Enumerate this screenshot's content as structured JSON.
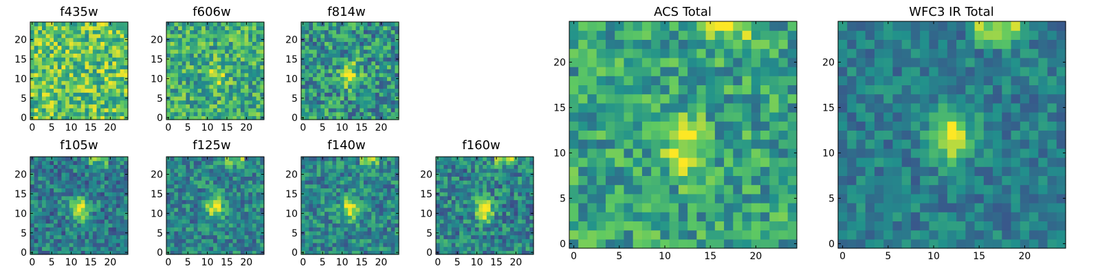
{
  "figure": {
    "background": "#ffffff"
  },
  "chart_data": [
    {
      "type": "heatmap",
      "id": "f435w",
      "title": "f435w",
      "xticks": [
        "0",
        "5",
        "10",
        "15",
        "20"
      ],
      "yticks": [
        "0",
        "5",
        "10",
        "15",
        "20"
      ],
      "xlim": [
        0,
        24
      ],
      "ylim": [
        0,
        24
      ],
      "peak": null
    },
    {
      "type": "heatmap",
      "id": "f606w",
      "title": "f606w",
      "xticks": [
        "0",
        "5",
        "10",
        "15",
        "20"
      ],
      "yticks": [
        "0",
        "5",
        "10",
        "15",
        "20"
      ],
      "xlim": [
        0,
        24
      ],
      "ylim": [
        0,
        24
      ],
      "peak": [
        12,
        11
      ]
    },
    {
      "type": "heatmap",
      "id": "f814w",
      "title": "f814w",
      "xticks": [
        "0",
        "5",
        "10",
        "15",
        "20"
      ],
      "yticks": [
        "0",
        "5",
        "10",
        "15",
        "20"
      ],
      "xlim": [
        0,
        24
      ],
      "ylim": [
        0,
        24
      ],
      "peak": [
        12,
        11
      ]
    },
    {
      "type": "heatmap",
      "id": "f105w",
      "title": "f105w",
      "xticks": [
        "0",
        "5",
        "10",
        "15",
        "20"
      ],
      "yticks": [
        "0",
        "5",
        "10",
        "15",
        "20"
      ],
      "xlim": [
        0,
        24
      ],
      "ylim": [
        0,
        24
      ],
      "peak": [
        12,
        11
      ]
    },
    {
      "type": "heatmap",
      "id": "f125w",
      "title": "f125w",
      "xticks": [
        "0",
        "5",
        "10",
        "15",
        "20"
      ],
      "yticks": [
        "0",
        "5",
        "10",
        "15",
        "20"
      ],
      "xlim": [
        0,
        24
      ],
      "ylim": [
        0,
        24
      ],
      "peak": [
        12,
        12
      ]
    },
    {
      "type": "heatmap",
      "id": "f140w",
      "title": "f140w",
      "xticks": [
        "0",
        "5",
        "10",
        "15",
        "20"
      ],
      "yticks": [
        "0",
        "5",
        "10",
        "15",
        "20"
      ],
      "xlim": [
        0,
        24
      ],
      "ylim": [
        0,
        24
      ],
      "peak": [
        12,
        11
      ]
    },
    {
      "type": "heatmap",
      "id": "f160w",
      "title": "f160w",
      "xticks": [
        "0",
        "5",
        "10",
        "15",
        "20"
      ],
      "yticks": [
        "0",
        "5",
        "10",
        "15",
        "20"
      ],
      "xlim": [
        0,
        24
      ],
      "ylim": [
        0,
        24
      ],
      "peak": [
        12,
        11
      ]
    },
    {
      "type": "heatmap",
      "id": "acs-total",
      "title": "ACS Total",
      "xticks": [
        "0",
        "5",
        "10",
        "15",
        "20"
      ],
      "yticks": [
        "0",
        "5",
        "10",
        "15",
        "20"
      ],
      "xlim": [
        0,
        24
      ],
      "ylim": [
        0,
        24
      ],
      "peak": [
        12,
        11
      ]
    },
    {
      "type": "heatmap",
      "id": "wfc3-ir-total",
      "title": "WFC3 IR Total",
      "xticks": [
        "0",
        "5",
        "10",
        "15",
        "20"
      ],
      "yticks": [
        "0",
        "5",
        "10",
        "15",
        "20"
      ],
      "xlim": [
        0,
        24
      ],
      "ylim": [
        0,
        24
      ],
      "peak": [
        12,
        12
      ]
    }
  ],
  "colormap": {
    "name": "viridis",
    "stops": [
      "#440154",
      "#3b528b",
      "#21918c",
      "#5ec962",
      "#fde725"
    ]
  }
}
